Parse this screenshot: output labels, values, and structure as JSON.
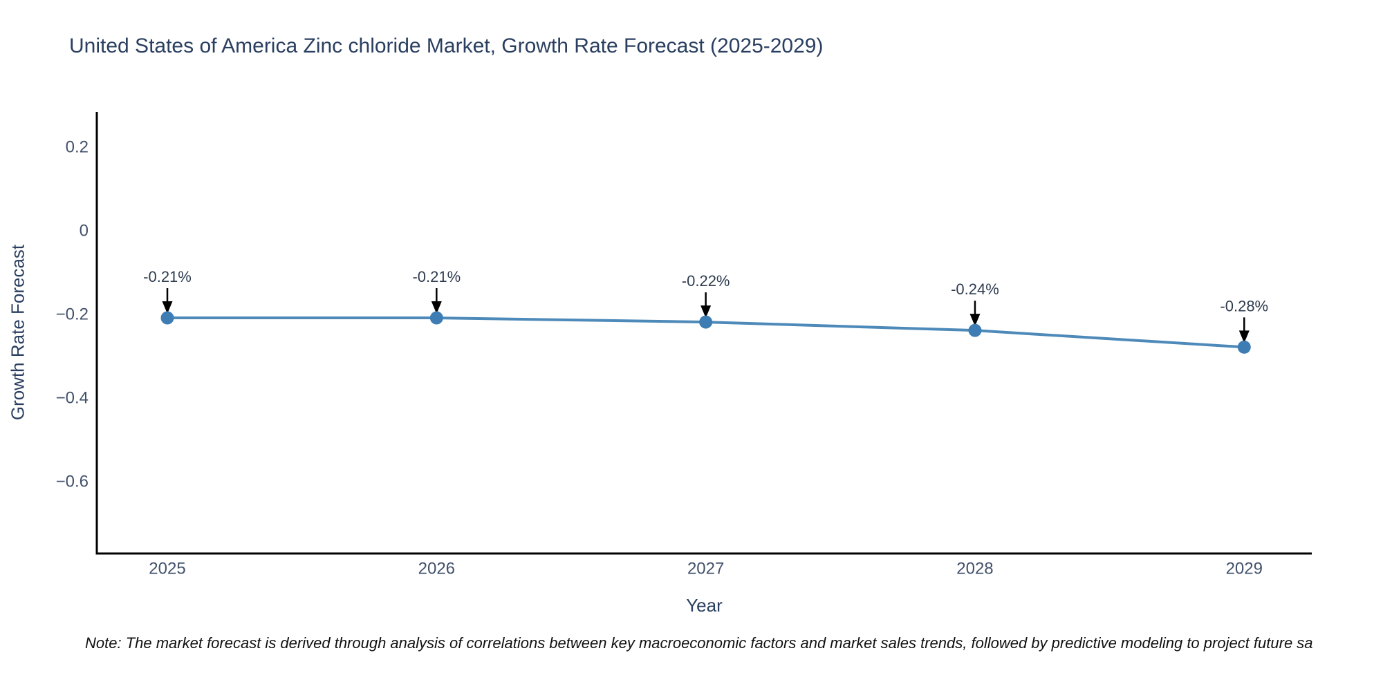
{
  "note": "Note: The market forecast is derived through analysis of correlations between key macroeconomic factors and market sales trends, followed by predictive modeling to project future sa",
  "chart_data": {
    "type": "line",
    "title": "United States of America Zinc chloride Market, Growth Rate Forecast (2025-2029)",
    "xlabel": "Year",
    "ylabel": "Growth Rate Forecast",
    "x": [
      2025,
      2026,
      2027,
      2028,
      2029
    ],
    "series": [
      {
        "name": "Growth Rate Forecast",
        "values": [
          -0.21,
          -0.21,
          -0.22,
          -0.24,
          -0.28
        ]
      }
    ],
    "point_labels": [
      "-0.21%",
      "-0.21%",
      "-0.22%",
      "-0.24%",
      "-0.28%"
    ],
    "xtick_labels": [
      "2025",
      "2026",
      "2027",
      "2028",
      "2029"
    ],
    "ytick_values": [
      0.2,
      0,
      -0.2,
      -0.4,
      -0.6
    ],
    "ytick_labels": [
      "0.2",
      "0",
      "−0.2",
      "−0.4",
      "−0.6"
    ],
    "xlim": [
      2024.738,
      2029.251
    ],
    "ylim": [
      -0.774,
      0.283
    ],
    "grid": false,
    "legend": false,
    "colors": {
      "line": "#4e8ab9",
      "marker": "#3d7db4",
      "axis_line": "#000000",
      "title_text": "#2a3f5f",
      "tick_text": "#42516b",
      "annotation_text": "#2e3b4e",
      "annotation_arrow": "#000000",
      "background": "#ffffff"
    }
  }
}
